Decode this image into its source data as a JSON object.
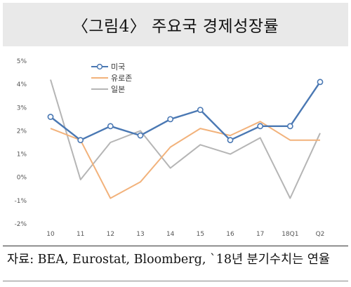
{
  "title": "〈그림4〉 주요국 경제성장률",
  "source": "자료: BEA, Eurostat, Bloomberg, `18년 분기수치는 연율",
  "chart_data": {
    "type": "line",
    "categories": [
      "10",
      "11",
      "12",
      "13",
      "14",
      "15",
      "16",
      "17",
      "18Q1",
      "Q2"
    ],
    "ylim": [
      -2,
      5
    ],
    "yticks": [
      -2,
      -1,
      0,
      1,
      2,
      3,
      4,
      5
    ],
    "ytick_labels": [
      "-2%",
      "-1%",
      "0%",
      "1%",
      "2%",
      "3%",
      "4%",
      "5%"
    ],
    "grid": false,
    "legend_position": "top-right",
    "series": [
      {
        "name": "미국",
        "color": "#4a78b3",
        "marker": "circle",
        "values": [
          2.6,
          1.6,
          2.2,
          1.8,
          2.5,
          2.9,
          1.6,
          2.2,
          2.2,
          4.1
        ]
      },
      {
        "name": "유로존",
        "color": "#f2b27b",
        "marker": "none",
        "values": [
          2.1,
          1.6,
          -0.9,
          -0.2,
          1.3,
          2.1,
          1.8,
          2.4,
          1.6,
          1.6
        ]
      },
      {
        "name": "일본",
        "color": "#b5b5b5",
        "marker": "none",
        "values": [
          4.2,
          -0.1,
          1.5,
          2.0,
          0.4,
          1.4,
          1.0,
          1.7,
          -0.9,
          1.9
        ]
      }
    ]
  }
}
